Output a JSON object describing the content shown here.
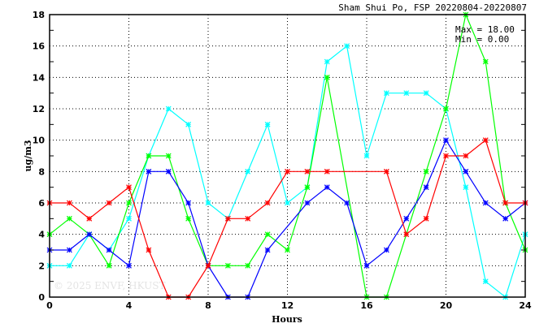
{
  "chart_data": {
    "type": "line",
    "title": "Sham Shui Po, FSP 20220804-20220807",
    "xlabel": "Hours",
    "ylabel": "ug/m3",
    "xlim": [
      0,
      24
    ],
    "ylim": [
      0,
      18
    ],
    "xticks": [
      0,
      4,
      8,
      12,
      16,
      20,
      24
    ],
    "yticks": [
      0,
      2,
      4,
      6,
      8,
      10,
      12,
      14,
      16,
      18
    ],
    "grid": true,
    "stats": {
      "max": "Max = 18.00",
      "min": "Min =  0.00"
    },
    "watermark": "© 2025  ENVF, HKUST",
    "x": [
      0,
      1,
      2,
      3,
      4,
      5,
      6,
      7,
      8,
      9,
      10,
      11,
      12,
      13,
      14,
      15,
      16,
      17,
      18,
      19,
      20,
      21,
      22,
      23,
      24
    ],
    "series": [
      {
        "name": "cyan",
        "color": "#00ffff",
        "values": [
          2,
          2,
          4,
          3,
          5,
          9,
          12,
          11,
          6,
          5,
          8,
          11,
          6,
          7,
          15,
          16,
          9,
          13,
          13,
          13,
          12,
          7,
          1,
          0,
          4
        ]
      },
      {
        "name": "green",
        "color": "#00ff00",
        "values": [
          4,
          5,
          4,
          2,
          6,
          9,
          9,
          5,
          2,
          2,
          2,
          4,
          3,
          7,
          14,
          null,
          0,
          0,
          null,
          8,
          12,
          18,
          15,
          6,
          3
        ]
      },
      {
        "name": "blue",
        "color": "#0000ff",
        "values": [
          3,
          3,
          4,
          3,
          2,
          8,
          8,
          6,
          2,
          0,
          0,
          3,
          null,
          6,
          7,
          6,
          2,
          3,
          5,
          7,
          10,
          8,
          6,
          5,
          6
        ]
      },
      {
        "name": "red",
        "color": "#ff0000",
        "values": [
          6,
          6,
          5,
          6,
          7,
          3,
          0,
          0,
          2,
          5,
          5,
          6,
          8,
          8,
          8,
          null,
          null,
          8,
          4,
          5,
          9,
          9,
          10,
          6,
          6
        ]
      }
    ]
  }
}
